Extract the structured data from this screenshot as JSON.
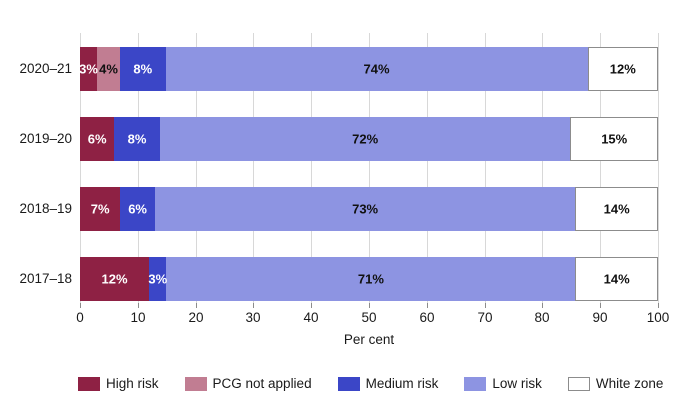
{
  "chart_data": {
    "type": "bar",
    "orientation": "horizontal_stacked",
    "title": "",
    "xlabel": "Per cent",
    "xlim": [
      0,
      100
    ],
    "xticks": [
      0,
      10,
      20,
      30,
      40,
      50,
      60,
      70,
      80,
      90,
      100
    ],
    "grid": "vertical",
    "legend_position": "bottom",
    "categories": [
      "2020–21",
      "2019–20",
      "2018–19",
      "2017–18"
    ],
    "value_suffix": "%",
    "series": [
      {
        "name": "High risk",
        "color": "#8e2144",
        "label_text_color": "#ffffff",
        "values": [
          3,
          6,
          7,
          12
        ]
      },
      {
        "name": "PCG not applied",
        "color": "#c17d92",
        "label_text_color": "#111111",
        "values": [
          4,
          0,
          0,
          0
        ]
      },
      {
        "name": "Medium risk",
        "color": "#3b46c7",
        "label_text_color": "#ffffff",
        "values": [
          8,
          8,
          6,
          3
        ]
      },
      {
        "name": "Low risk",
        "color": "#8d94e2",
        "label_text_color": "#111111",
        "values": [
          74,
          72,
          73,
          71
        ]
      },
      {
        "name": "White zone",
        "color": "#ffffff",
        "border_color": "#8c8c8c",
        "label_text_color": "#111111",
        "values": [
          12,
          15,
          14,
          14
        ]
      }
    ],
    "style": {
      "grid_color": "#d8d8d8",
      "tick_color": "#8c8c8c",
      "text_color": "#1a1a1a"
    }
  }
}
